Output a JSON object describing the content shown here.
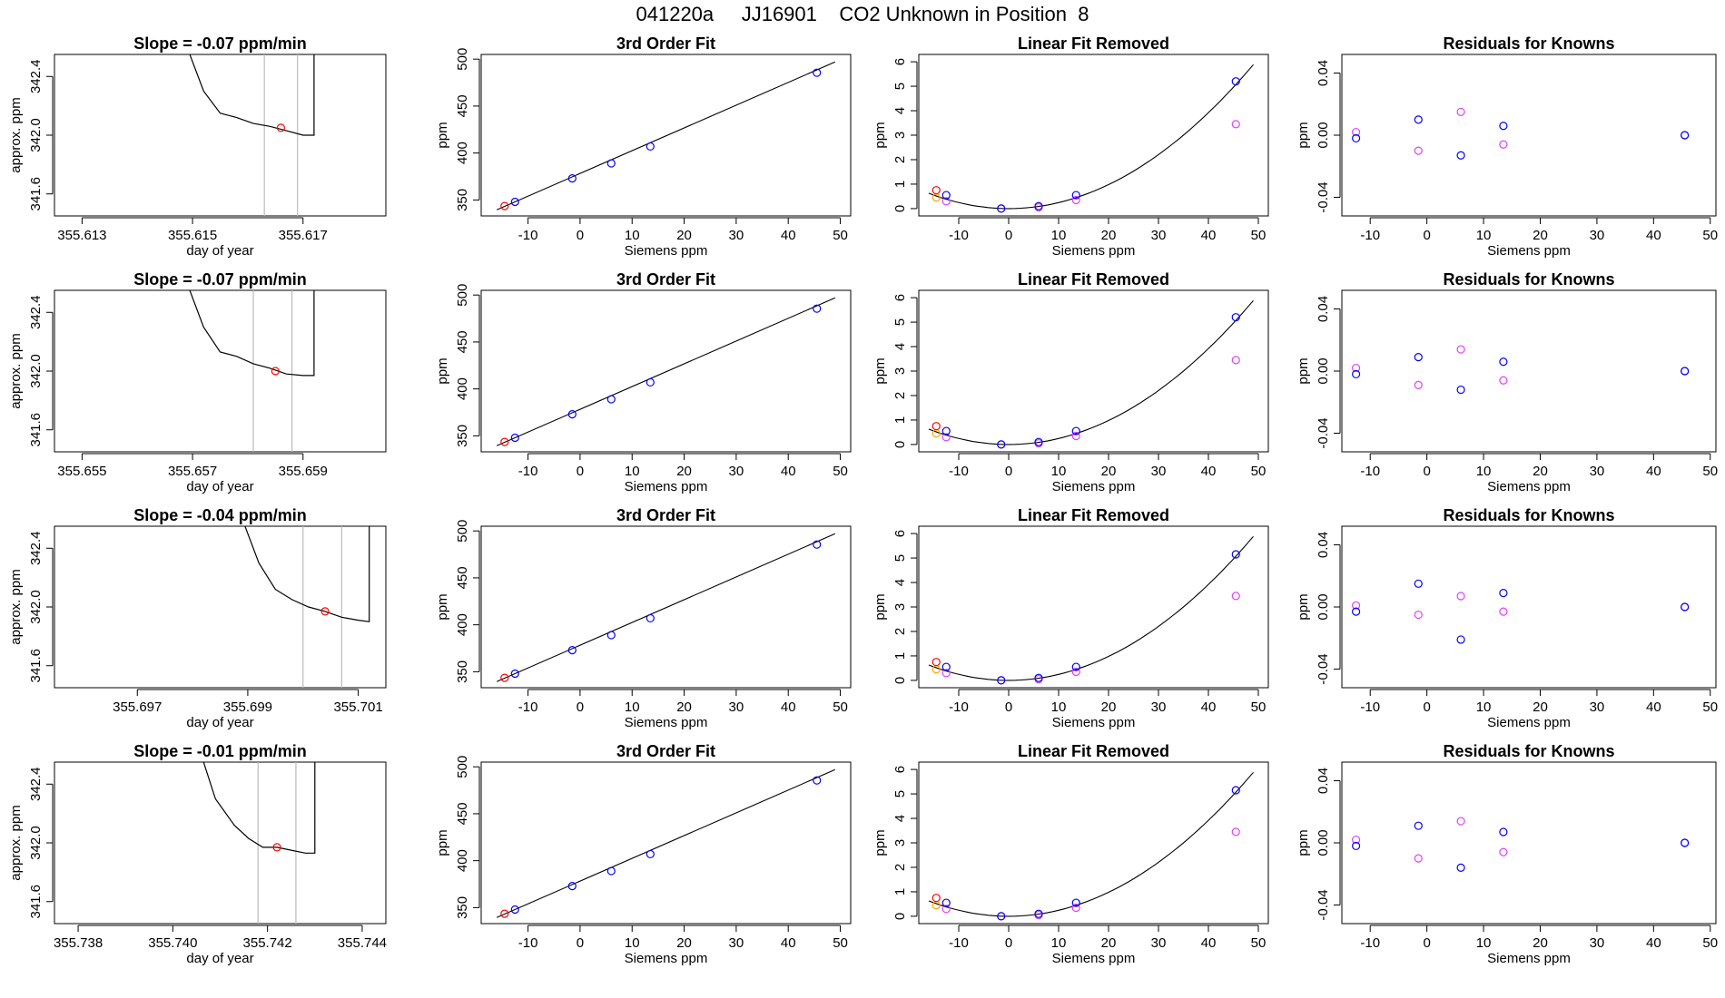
{
  "page_title": "041220a     JJ16901    CO2 Unknown in Position  8",
  "colors": {
    "axis": "#000000",
    "trace": "#000000",
    "window_line": "#bbbbbb",
    "known_point": "#0000ff",
    "residual_alt_point": "#e040fb",
    "unknown_point": "#ff0000",
    "unknown_alt_point": "#ffa500",
    "fit_line": "#000000"
  },
  "chart_data": [
    {
      "type": "line",
      "row": 1,
      "title": "Slope =  -0.07  ppm/min",
      "xlabel": "day of year",
      "ylabel": "approx. ppm",
      "xlim": [
        355.6125,
        355.6185
      ],
      "ylim": [
        341.45,
        342.55
      ],
      "xticks": [
        "355.613",
        "355.615",
        "355.617"
      ],
      "yticks": [
        "341.6",
        "342.0",
        "342.4"
      ],
      "window": [
        355.6163,
        355.6169
      ],
      "marker": {
        "x": 355.6166,
        "y": 342.05
      },
      "trace": [
        [
          355.6149,
          342.6
        ],
        [
          355.6152,
          342.3
        ],
        [
          355.6155,
          342.15
        ],
        [
          355.6158,
          342.12
        ],
        [
          355.6161,
          342.08
        ],
        [
          355.6164,
          342.06
        ],
        [
          355.6167,
          342.03
        ],
        [
          355.617,
          342.0
        ],
        [
          355.6172,
          342.0
        ],
        [
          355.6172,
          342.6
        ]
      ]
    },
    {
      "type": "scatter",
      "row": 1,
      "title": "3rd Order Fit",
      "xlabel": "Siemens ppm",
      "ylabel": "ppm",
      "xlim": [
        -19,
        52
      ],
      "ylim": [
        333,
        505
      ],
      "xticks": [
        "-10",
        "0",
        "10",
        "20",
        "30",
        "40",
        "50"
      ],
      "yticks": [
        "350",
        "400",
        "450",
        "500"
      ],
      "fit": [
        [
          -16,
          339.5
        ],
        [
          49,
          497
        ]
      ],
      "known": [
        [
          -12.5,
          348
        ],
        [
          -1.5,
          373
        ],
        [
          6,
          389
        ],
        [
          13.5,
          407
        ],
        [
          45.5,
          485.5
        ]
      ],
      "unknown": [
        [
          -14.5,
          343.5
        ]
      ]
    },
    {
      "type": "scatter",
      "row": 1,
      "title": "Linear Fit Removed",
      "xlabel": "Siemens ppm",
      "ylabel": "ppm",
      "xlim": [
        -18,
        52
      ],
      "ylim": [
        -0.3,
        6.3
      ],
      "xticks": [
        "-10",
        "0",
        "10",
        "20",
        "30",
        "40",
        "50"
      ],
      "yticks": [
        "0",
        "1",
        "2",
        "3",
        "4",
        "5",
        "6"
      ],
      "curve": {
        "vertex_x": 0,
        "a": 0.00245,
        "from": -16,
        "to": 49
      },
      "known": [
        [
          -12.5,
          0.55
        ],
        [
          -1.5,
          0.0
        ],
        [
          6,
          0.1
        ],
        [
          13.5,
          0.55
        ],
        [
          45.5,
          5.2
        ]
      ],
      "known_alt": [
        [
          -12.5,
          0.3
        ],
        [
          -1.5,
          0.0
        ],
        [
          6,
          0.05
        ],
        [
          13.5,
          0.35
        ],
        [
          45.5,
          3.45
        ]
      ],
      "unknown": [
        [
          -14.5,
          0.75
        ]
      ],
      "unknown_alt": [
        [
          -14.5,
          0.45
        ]
      ]
    },
    {
      "type": "scatter",
      "row": 1,
      "title": "Residuals for Knowns",
      "xlabel": "Siemens ppm",
      "ylabel": "ppm",
      "xlim": [
        -15,
        51
      ],
      "ylim": [
        -0.052,
        0.052
      ],
      "xticks": [
        "-10",
        "0",
        "10",
        "20",
        "30",
        "40",
        "50"
      ],
      "yticks": [
        "-0.04",
        "0.00",
        "0.04"
      ],
      "known": [
        [
          -12.5,
          -0.002
        ],
        [
          -1.5,
          0.01
        ],
        [
          6,
          -0.013
        ],
        [
          13.5,
          0.006
        ],
        [
          45.5,
          0.0
        ]
      ],
      "known_alt": [
        [
          -12.5,
          0.002
        ],
        [
          -1.5,
          -0.01
        ],
        [
          6,
          0.015
        ],
        [
          13.5,
          -0.006
        ],
        [
          45.5,
          0.0
        ]
      ]
    },
    {
      "type": "line",
      "row": 2,
      "title": "Slope =  -0.07  ppm/min",
      "xlabel": "day of year",
      "ylabel": "approx. ppm",
      "xlim": [
        355.6545,
        355.6605
      ],
      "ylim": [
        341.45,
        342.55
      ],
      "xticks": [
        "355.655",
        "355.657",
        "355.659"
      ],
      "yticks": [
        "341.6",
        "342.0",
        "342.4"
      ],
      "window": [
        355.6581,
        355.6588
      ],
      "marker": {
        "x": 355.6585,
        "y": 342.0
      },
      "trace": [
        [
          355.6569,
          342.6
        ],
        [
          355.6572,
          342.3
        ],
        [
          355.6575,
          342.13
        ],
        [
          355.6578,
          342.1
        ],
        [
          355.6581,
          342.05
        ],
        [
          355.6584,
          342.02
        ],
        [
          355.6587,
          341.98
        ],
        [
          355.659,
          341.97
        ],
        [
          355.6592,
          341.97
        ],
        [
          355.6592,
          342.6
        ]
      ]
    },
    {
      "type": "scatter",
      "row": 2,
      "title": "3rd Order Fit",
      "xlabel": "Siemens ppm",
      "ylabel": "ppm",
      "xlim": [
        -19,
        52
      ],
      "ylim": [
        333,
        505
      ],
      "xticks": [
        "-10",
        "0",
        "10",
        "20",
        "30",
        "40",
        "50"
      ],
      "yticks": [
        "350",
        "400",
        "450",
        "500"
      ],
      "fit": [
        [
          -16,
          339.5
        ],
        [
          49,
          497
        ]
      ],
      "known": [
        [
          -12.5,
          348
        ],
        [
          -1.5,
          373
        ],
        [
          6,
          389
        ],
        [
          13.5,
          407
        ],
        [
          45.5,
          485.5
        ]
      ],
      "unknown": [
        [
          -14.5,
          343.5
        ]
      ]
    },
    {
      "type": "scatter",
      "row": 2,
      "title": "Linear Fit Removed",
      "xlabel": "Siemens ppm",
      "ylabel": "ppm",
      "xlim": [
        -18,
        52
      ],
      "ylim": [
        -0.3,
        6.3
      ],
      "xticks": [
        "-10",
        "0",
        "10",
        "20",
        "30",
        "40",
        "50"
      ],
      "yticks": [
        "0",
        "1",
        "2",
        "3",
        "4",
        "5",
        "6"
      ],
      "curve": {
        "vertex_x": 0,
        "a": 0.00245,
        "from": -16,
        "to": 49
      },
      "known": [
        [
          -12.5,
          0.55
        ],
        [
          -1.5,
          0.0
        ],
        [
          6,
          0.1
        ],
        [
          13.5,
          0.55
        ],
        [
          45.5,
          5.2
        ]
      ],
      "known_alt": [
        [
          -12.5,
          0.3
        ],
        [
          -1.5,
          0.0
        ],
        [
          6,
          0.05
        ],
        [
          13.5,
          0.35
        ],
        [
          45.5,
          3.45
        ]
      ],
      "unknown": [
        [
          -14.5,
          0.75
        ]
      ],
      "unknown_alt": [
        [
          -14.5,
          0.45
        ]
      ]
    },
    {
      "type": "scatter",
      "row": 2,
      "title": "Residuals for Knowns",
      "xlabel": "Siemens ppm",
      "ylabel": "ppm",
      "xlim": [
        -15,
        51
      ],
      "ylim": [
        -0.052,
        0.052
      ],
      "xticks": [
        "-10",
        "0",
        "10",
        "20",
        "30",
        "40",
        "50"
      ],
      "yticks": [
        "-0.04",
        "0.00",
        "0.04"
      ],
      "known": [
        [
          -12.5,
          -0.002
        ],
        [
          -1.5,
          0.009
        ],
        [
          6,
          -0.012
        ],
        [
          13.5,
          0.006
        ],
        [
          45.5,
          0.0
        ]
      ],
      "known_alt": [
        [
          -12.5,
          0.002
        ],
        [
          -1.5,
          -0.009
        ],
        [
          6,
          0.014
        ],
        [
          13.5,
          -0.006
        ],
        [
          45.5,
          0.0
        ]
      ]
    },
    {
      "type": "line",
      "row": 3,
      "title": "Slope =  -0.04  ppm/min",
      "xlabel": "day of year",
      "ylabel": "approx. ppm",
      "xlim": [
        355.6955,
        355.7015
      ],
      "ylim": [
        341.45,
        342.55
      ],
      "xticks": [
        "355.697",
        "355.699",
        "355.701"
      ],
      "yticks": [
        "341.6",
        "342.0",
        "342.4"
      ],
      "window": [
        355.7,
        355.7007
      ],
      "marker": {
        "x": 355.7004,
        "y": 341.97
      },
      "trace": [
        [
          355.6989,
          342.6
        ],
        [
          355.6992,
          342.3
        ],
        [
          355.6995,
          342.12
        ],
        [
          355.6998,
          342.05
        ],
        [
          355.7001,
          342.0
        ],
        [
          355.7004,
          341.97
        ],
        [
          355.7007,
          341.93
        ],
        [
          355.701,
          341.91
        ],
        [
          355.7012,
          341.9
        ],
        [
          355.7012,
          342.6
        ]
      ]
    },
    {
      "type": "scatter",
      "row": 3,
      "title": "3rd Order Fit",
      "xlabel": "Siemens ppm",
      "ylabel": "ppm",
      "xlim": [
        -19,
        52
      ],
      "ylim": [
        333,
        505
      ],
      "xticks": [
        "-10",
        "0",
        "10",
        "20",
        "30",
        "40",
        "50"
      ],
      "yticks": [
        "350",
        "400",
        "450",
        "500"
      ],
      "fit": [
        [
          -16,
          339.5
        ],
        [
          49,
          497
        ]
      ],
      "known": [
        [
          -12.5,
          348
        ],
        [
          -1.5,
          373
        ],
        [
          6,
          389
        ],
        [
          13.5,
          407
        ],
        [
          45.5,
          485.5
        ]
      ],
      "unknown": [
        [
          -14.5,
          343.5
        ]
      ]
    },
    {
      "type": "scatter",
      "row": 3,
      "title": "Linear Fit Removed",
      "xlabel": "Siemens ppm",
      "ylabel": "ppm",
      "xlim": [
        -18,
        52
      ],
      "ylim": [
        -0.3,
        6.3
      ],
      "xticks": [
        "-10",
        "0",
        "10",
        "20",
        "30",
        "40",
        "50"
      ],
      "yticks": [
        "0",
        "1",
        "2",
        "3",
        "4",
        "5",
        "6"
      ],
      "curve": {
        "vertex_x": 0,
        "a": 0.00245,
        "from": -16,
        "to": 49
      },
      "known": [
        [
          -12.5,
          0.55
        ],
        [
          -1.5,
          0.0
        ],
        [
          6,
          0.1
        ],
        [
          13.5,
          0.55
        ],
        [
          45.5,
          5.15
        ]
      ],
      "known_alt": [
        [
          -12.5,
          0.3
        ],
        [
          -1.5,
          0.0
        ],
        [
          6,
          0.05
        ],
        [
          13.5,
          0.35
        ],
        [
          45.5,
          3.45
        ]
      ],
      "unknown": [
        [
          -14.5,
          0.75
        ]
      ],
      "unknown_alt": [
        [
          -14.5,
          0.45
        ]
      ]
    },
    {
      "type": "scatter",
      "row": 3,
      "title": "Residuals for Knowns",
      "xlabel": "Siemens ppm",
      "ylabel": "ppm",
      "xlim": [
        -15,
        51
      ],
      "ylim": [
        -0.052,
        0.052
      ],
      "xticks": [
        "-10",
        "0",
        "10",
        "20",
        "30",
        "40",
        "50"
      ],
      "yticks": [
        "-0.04",
        "0.00",
        "0.04"
      ],
      "known": [
        [
          -12.5,
          -0.003
        ],
        [
          -1.5,
          0.015
        ],
        [
          6,
          -0.021
        ],
        [
          13.5,
          0.009
        ],
        [
          45.5,
          0.0
        ]
      ],
      "known_alt": [
        [
          -12.5,
          0.001
        ],
        [
          -1.5,
          -0.005
        ],
        [
          6,
          0.007
        ],
        [
          13.5,
          -0.003
        ],
        [
          45.5,
          0.0
        ]
      ]
    },
    {
      "type": "line",
      "row": 4,
      "title": "Slope =  -0.01  ppm/min",
      "xlabel": "day of year",
      "ylabel": "approx. ppm",
      "xlim": [
        355.7375,
        355.7445
      ],
      "ylim": [
        341.45,
        342.55
      ],
      "xticks": [
        "355.738",
        "355.740",
        "355.742",
        "355.744"
      ],
      "yticks": [
        "341.6",
        "342.0",
        "342.4"
      ],
      "window": [
        355.7418,
        355.7426
      ],
      "marker": {
        "x": 355.7422,
        "y": 341.97
      },
      "trace": [
        [
          355.7406,
          342.6
        ],
        [
          355.7409,
          342.3
        ],
        [
          355.7413,
          342.12
        ],
        [
          355.7416,
          342.03
        ],
        [
          355.7419,
          341.97
        ],
        [
          355.7422,
          341.97
        ],
        [
          355.7425,
          341.95
        ],
        [
          355.7428,
          341.93
        ],
        [
          355.743,
          341.93
        ],
        [
          355.743,
          342.6
        ]
      ]
    },
    {
      "type": "scatter",
      "row": 4,
      "title": "3rd Order Fit",
      "xlabel": "Siemens ppm",
      "ylabel": "ppm",
      "xlim": [
        -19,
        52
      ],
      "ylim": [
        333,
        505
      ],
      "xticks": [
        "-10",
        "0",
        "10",
        "20",
        "30",
        "40",
        "50"
      ],
      "yticks": [
        "350",
        "400",
        "450",
        "500"
      ],
      "fit": [
        [
          -16,
          339.5
        ],
        [
          49,
          497
        ]
      ],
      "known": [
        [
          -12.5,
          348
        ],
        [
          -1.5,
          373
        ],
        [
          6,
          389
        ],
        [
          13.5,
          407
        ],
        [
          45.5,
          485.5
        ]
      ],
      "unknown": [
        [
          -14.5,
          343.5
        ]
      ]
    },
    {
      "type": "scatter",
      "row": 4,
      "title": "Linear Fit Removed",
      "xlabel": "Siemens ppm",
      "ylabel": "ppm",
      "xlim": [
        -18,
        52
      ],
      "ylim": [
        -0.3,
        6.3
      ],
      "xticks": [
        "-10",
        "0",
        "10",
        "20",
        "30",
        "40",
        "50"
      ],
      "yticks": [
        "0",
        "1",
        "2",
        "3",
        "4",
        "5",
        "6"
      ],
      "curve": {
        "vertex_x": 0,
        "a": 0.00245,
        "from": -16,
        "to": 49
      },
      "known": [
        [
          -12.5,
          0.55
        ],
        [
          -1.5,
          0.0
        ],
        [
          6,
          0.1
        ],
        [
          13.5,
          0.55
        ],
        [
          45.5,
          5.15
        ]
      ],
      "known_alt": [
        [
          -12.5,
          0.3
        ],
        [
          -1.5,
          0.0
        ],
        [
          6,
          0.05
        ],
        [
          13.5,
          0.35
        ],
        [
          45.5,
          3.45
        ]
      ],
      "unknown": [
        [
          -14.5,
          0.75
        ]
      ],
      "unknown_alt": [
        [
          -14.5,
          0.45
        ]
      ]
    },
    {
      "type": "scatter",
      "row": 4,
      "title": "Residuals for Knowns",
      "xlabel": "Siemens ppm",
      "ylabel": "ppm",
      "xlim": [
        -15,
        51
      ],
      "ylim": [
        -0.052,
        0.052
      ],
      "xticks": [
        "-10",
        "0",
        "10",
        "20",
        "30",
        "40",
        "50"
      ],
      "yticks": [
        "-0.04",
        "0.00",
        "0.04"
      ],
      "known": [
        [
          -12.5,
          -0.002
        ],
        [
          -1.5,
          0.011
        ],
        [
          6,
          -0.016
        ],
        [
          13.5,
          0.007
        ],
        [
          45.5,
          0.0
        ]
      ],
      "known_alt": [
        [
          -12.5,
          0.002
        ],
        [
          -1.5,
          -0.01
        ],
        [
          6,
          0.014
        ],
        [
          13.5,
          -0.006
        ],
        [
          45.5,
          0.0
        ]
      ]
    }
  ]
}
